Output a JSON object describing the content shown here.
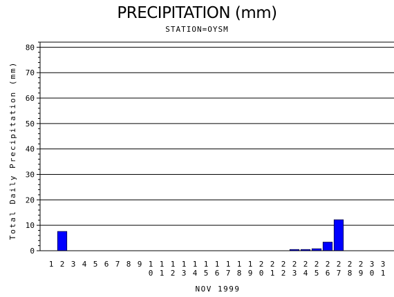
{
  "chart_data": {
    "type": "bar",
    "title": "PRECIPITATION (mm)",
    "subtitle": "STATION=OYSM",
    "xlabel": "NOV 1999",
    "ylabel": "Total Daily Precipitation (mm)",
    "categories": [
      "1",
      "2",
      "3",
      "4",
      "5",
      "6",
      "7",
      "8",
      "9",
      "10",
      "11",
      "12",
      "13",
      "14",
      "15",
      "16",
      "17",
      "18",
      "19",
      "20",
      "21",
      "22",
      "23",
      "24",
      "25",
      "26",
      "27",
      "28",
      "29",
      "30",
      "31"
    ],
    "values": [
      0,
      7.6,
      0,
      0,
      0,
      0,
      0,
      0,
      0,
      0,
      0,
      0,
      0,
      0,
      0,
      0,
      0,
      0,
      0,
      0,
      0,
      0,
      0.5,
      0.5,
      0.8,
      3.4,
      12.2,
      0,
      0,
      0,
      0
    ],
    "ylim": [
      0,
      82
    ],
    "yticks": [
      0,
      10,
      20,
      30,
      40,
      50,
      60,
      70,
      80
    ],
    "grid": true,
    "bar_color": "#0000ff"
  }
}
